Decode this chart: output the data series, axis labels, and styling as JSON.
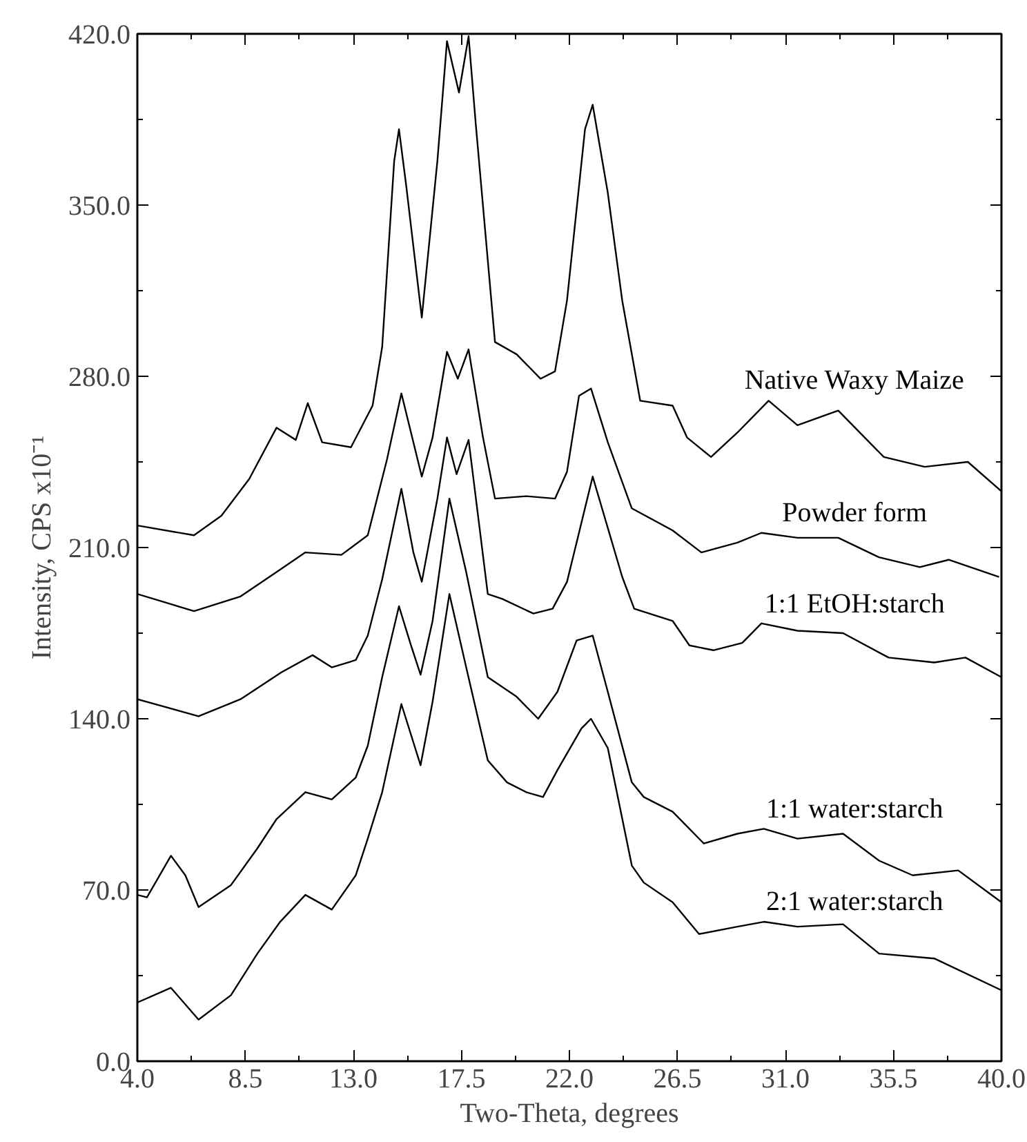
{
  "chart_data": {
    "type": "line",
    "xlabel": "Two-Theta, degrees",
    "ylabel": "Intensity, CPS x10⁻¹",
    "xlim": [
      4,
      40
    ],
    "ylim": [
      0,
      420
    ],
    "xticks": [
      {
        "value": 4,
        "label": "4.0"
      },
      {
        "value": 8.5,
        "label": "8.5"
      },
      {
        "value": 13,
        "label": "13.0"
      },
      {
        "value": 17.5,
        "label": "17.5"
      },
      {
        "value": 22,
        "label": "22.0"
      },
      {
        "value": 26.5,
        "label": "26.5"
      },
      {
        "value": 31,
        "label": "31.0"
      },
      {
        "value": 35.5,
        "label": "35.5"
      },
      {
        "value": 40,
        "label": "40.0"
      }
    ],
    "yticks": [
      {
        "value": 0,
        "label": "0.0"
      },
      {
        "value": 70,
        "label": "70.0"
      },
      {
        "value": 140,
        "label": "140.0"
      },
      {
        "value": 210,
        "label": "210.0"
      },
      {
        "value": 280,
        "label": "280.0"
      },
      {
        "value": 350,
        "label": "350.0"
      },
      {
        "value": 420,
        "label": "420.0"
      }
    ],
    "grid": false,
    "legend": "right",
    "marker": "none",
    "line_style": "solid",
    "series": [
      {
        "name": "Native Waxy Maize",
        "color": "#000000",
        "x": [
          4,
          6.36,
          7.5,
          8.66,
          9.8,
          10.6,
          11.1,
          11.7,
          12.9,
          13.8,
          14.2,
          14.7,
          14.9,
          15.2,
          15.85,
          16.5,
          16.9,
          17.4,
          17.8,
          18.1,
          18.9,
          19.8,
          20.8,
          21.4,
          21.9,
          22.65,
          22.97,
          23.6,
          24.2,
          24.95,
          26.3,
          26.9,
          27.9,
          29.0,
          30.3,
          31.5,
          33.2,
          35.1,
          36.8,
          38.6,
          40
        ],
        "values": [
          219,
          215,
          223,
          238,
          259,
          254,
          269,
          253,
          251,
          268,
          292,
          368,
          381,
          358,
          304,
          368,
          417,
          396,
          419,
          383,
          294,
          289,
          279,
          282,
          311,
          381,
          391,
          355,
          311,
          270,
          268,
          255,
          247,
          257,
          270,
          260,
          266,
          247,
          243,
          245,
          233
        ]
      },
      {
        "name": "Powder form",
        "color": "#000000",
        "x": [
          4,
          6.36,
          8.3,
          9.8,
          11.0,
          12.5,
          13.6,
          14.4,
          15.0,
          15.85,
          16.3,
          16.9,
          17.35,
          17.8,
          18.4,
          18.9,
          20.2,
          21.4,
          21.9,
          22.4,
          22.9,
          23.6,
          24.6,
          26.3,
          27.5,
          29.0,
          30.0,
          31.5,
          33.2,
          34.9,
          36.6,
          37.8,
          39.9
        ],
        "values": [
          191,
          184,
          190,
          200,
          208,
          207,
          215,
          246,
          273,
          239,
          255,
          290,
          279,
          291,
          255,
          230,
          231,
          230,
          241,
          272,
          275,
          253,
          226,
          217,
          208,
          212,
          216,
          214,
          214,
          206,
          202,
          205,
          198
        ]
      },
      {
        "name": "1:1 EtOH:starch",
        "color": "#000000",
        "x": [
          4,
          6.55,
          8.3,
          10.0,
          11.3,
          12.1,
          13.1,
          13.6,
          14.2,
          15.0,
          15.5,
          15.85,
          16.5,
          16.9,
          17.3,
          17.8,
          18.6,
          19.2,
          20.5,
          21.3,
          21.9,
          22.2,
          22.97,
          24.2,
          24.7,
          26.3,
          27.0,
          28.0,
          29.2,
          30.0,
          31.5,
          33.4,
          35.3,
          37.2,
          38.5,
          40
        ],
        "values": [
          148,
          141,
          148,
          159,
          166,
          161,
          164,
          174,
          197,
          234,
          208,
          196,
          230,
          255,
          240,
          254,
          191,
          189,
          183,
          185,
          196,
          208,
          239,
          198,
          185,
          180,
          170,
          168,
          171,
          179,
          176,
          175,
          165,
          163,
          165,
          157
        ]
      },
      {
        "name": "1:1 water:starch",
        "color": "#000000",
        "x": [
          4,
          4.4,
          5.4,
          6.0,
          6.55,
          7.9,
          9.0,
          9.8,
          11.0,
          12.1,
          13.1,
          13.6,
          14.2,
          14.9,
          15.4,
          15.8,
          16.3,
          17.0,
          17.7,
          18.6,
          19.8,
          20.7,
          21.5,
          22.3,
          22.97,
          23.6,
          24.6,
          25.1,
          26.3,
          27.6,
          29.0,
          30.1,
          31.5,
          33.4,
          34.9,
          36.3,
          38.2,
          40
        ],
        "values": [
          68,
          67,
          84,
          76,
          63,
          72,
          87,
          99,
          110,
          107,
          116,
          129,
          157,
          186,
          170,
          158,
          180,
          230,
          200,
          157,
          149,
          140,
          151,
          172,
          174,
          151,
          114,
          108,
          102,
          89,
          93,
          95,
          91,
          93,
          82,
          76,
          78,
          65
        ]
      },
      {
        "name": "2:1 water:starch",
        "color": "#000000",
        "x": [
          4,
          5.4,
          6.55,
          7.9,
          9.0,
          9.95,
          11.0,
          12.1,
          13.1,
          13.6,
          14.2,
          15.0,
          15.8,
          16.3,
          17.0,
          17.7,
          18.6,
          19.4,
          20.2,
          20.9,
          21.5,
          22.5,
          22.9,
          23.6,
          24.6,
          25.1,
          26.3,
          27.4,
          29.0,
          30.1,
          31.5,
          33.4,
          34.9,
          37.2,
          40
        ],
        "values": [
          24,
          30,
          17,
          27,
          44,
          57,
          68,
          62,
          76,
          91,
          110,
          146,
          121,
          147,
          191,
          161,
          123,
          114,
          110,
          108,
          119,
          136,
          140,
          128,
          80,
          73,
          65,
          52,
          55,
          57,
          55,
          56,
          44,
          42,
          29
        ]
      }
    ]
  }
}
